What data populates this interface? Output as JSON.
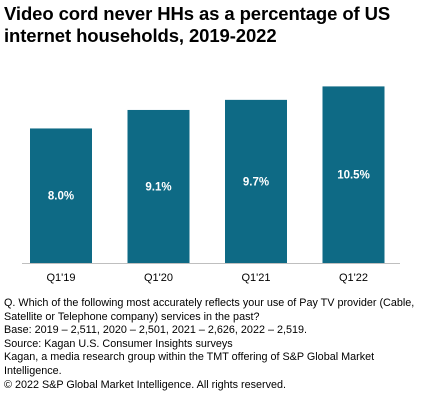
{
  "title": "Video cord never HHs as a percentage of US internet households, 2019-2022",
  "chart_data": {
    "type": "bar",
    "title": "Video cord never HHs as a percentage of US internet households, 2019-2022",
    "categories": [
      "Q1'19",
      "Q1'20",
      "Q1'21",
      "Q1'22"
    ],
    "values": [
      8.0,
      9.1,
      9.7,
      10.5
    ],
    "value_labels": [
      "8.0%",
      "9.1%",
      "9.7%",
      "10.5%"
    ],
    "unit": "%",
    "ylim": [
      0,
      11
    ],
    "xlabel": "",
    "ylabel": "",
    "grid": false,
    "legend": "none",
    "bar_color": "#0e6a85",
    "label_color": "#ffffff"
  },
  "notes": {
    "question": "Q. Which of the following most accurately reflects your use of Pay TV provider (Cable, Satellite or Telephone company) services in the past?",
    "base": "Base: 2019 – 2,511, 2020 – 2,501, 2021 – 2,626, 2022 – 2,519.",
    "source": "Source: Kagan U.S. Consumer Insights surveys",
    "kagan": "Kagan, a media research group within the TMT offering of S&P Global Market Intelligence.",
    "copyright": "© 2022 S&P Global Market Intelligence.  All rights reserved."
  }
}
